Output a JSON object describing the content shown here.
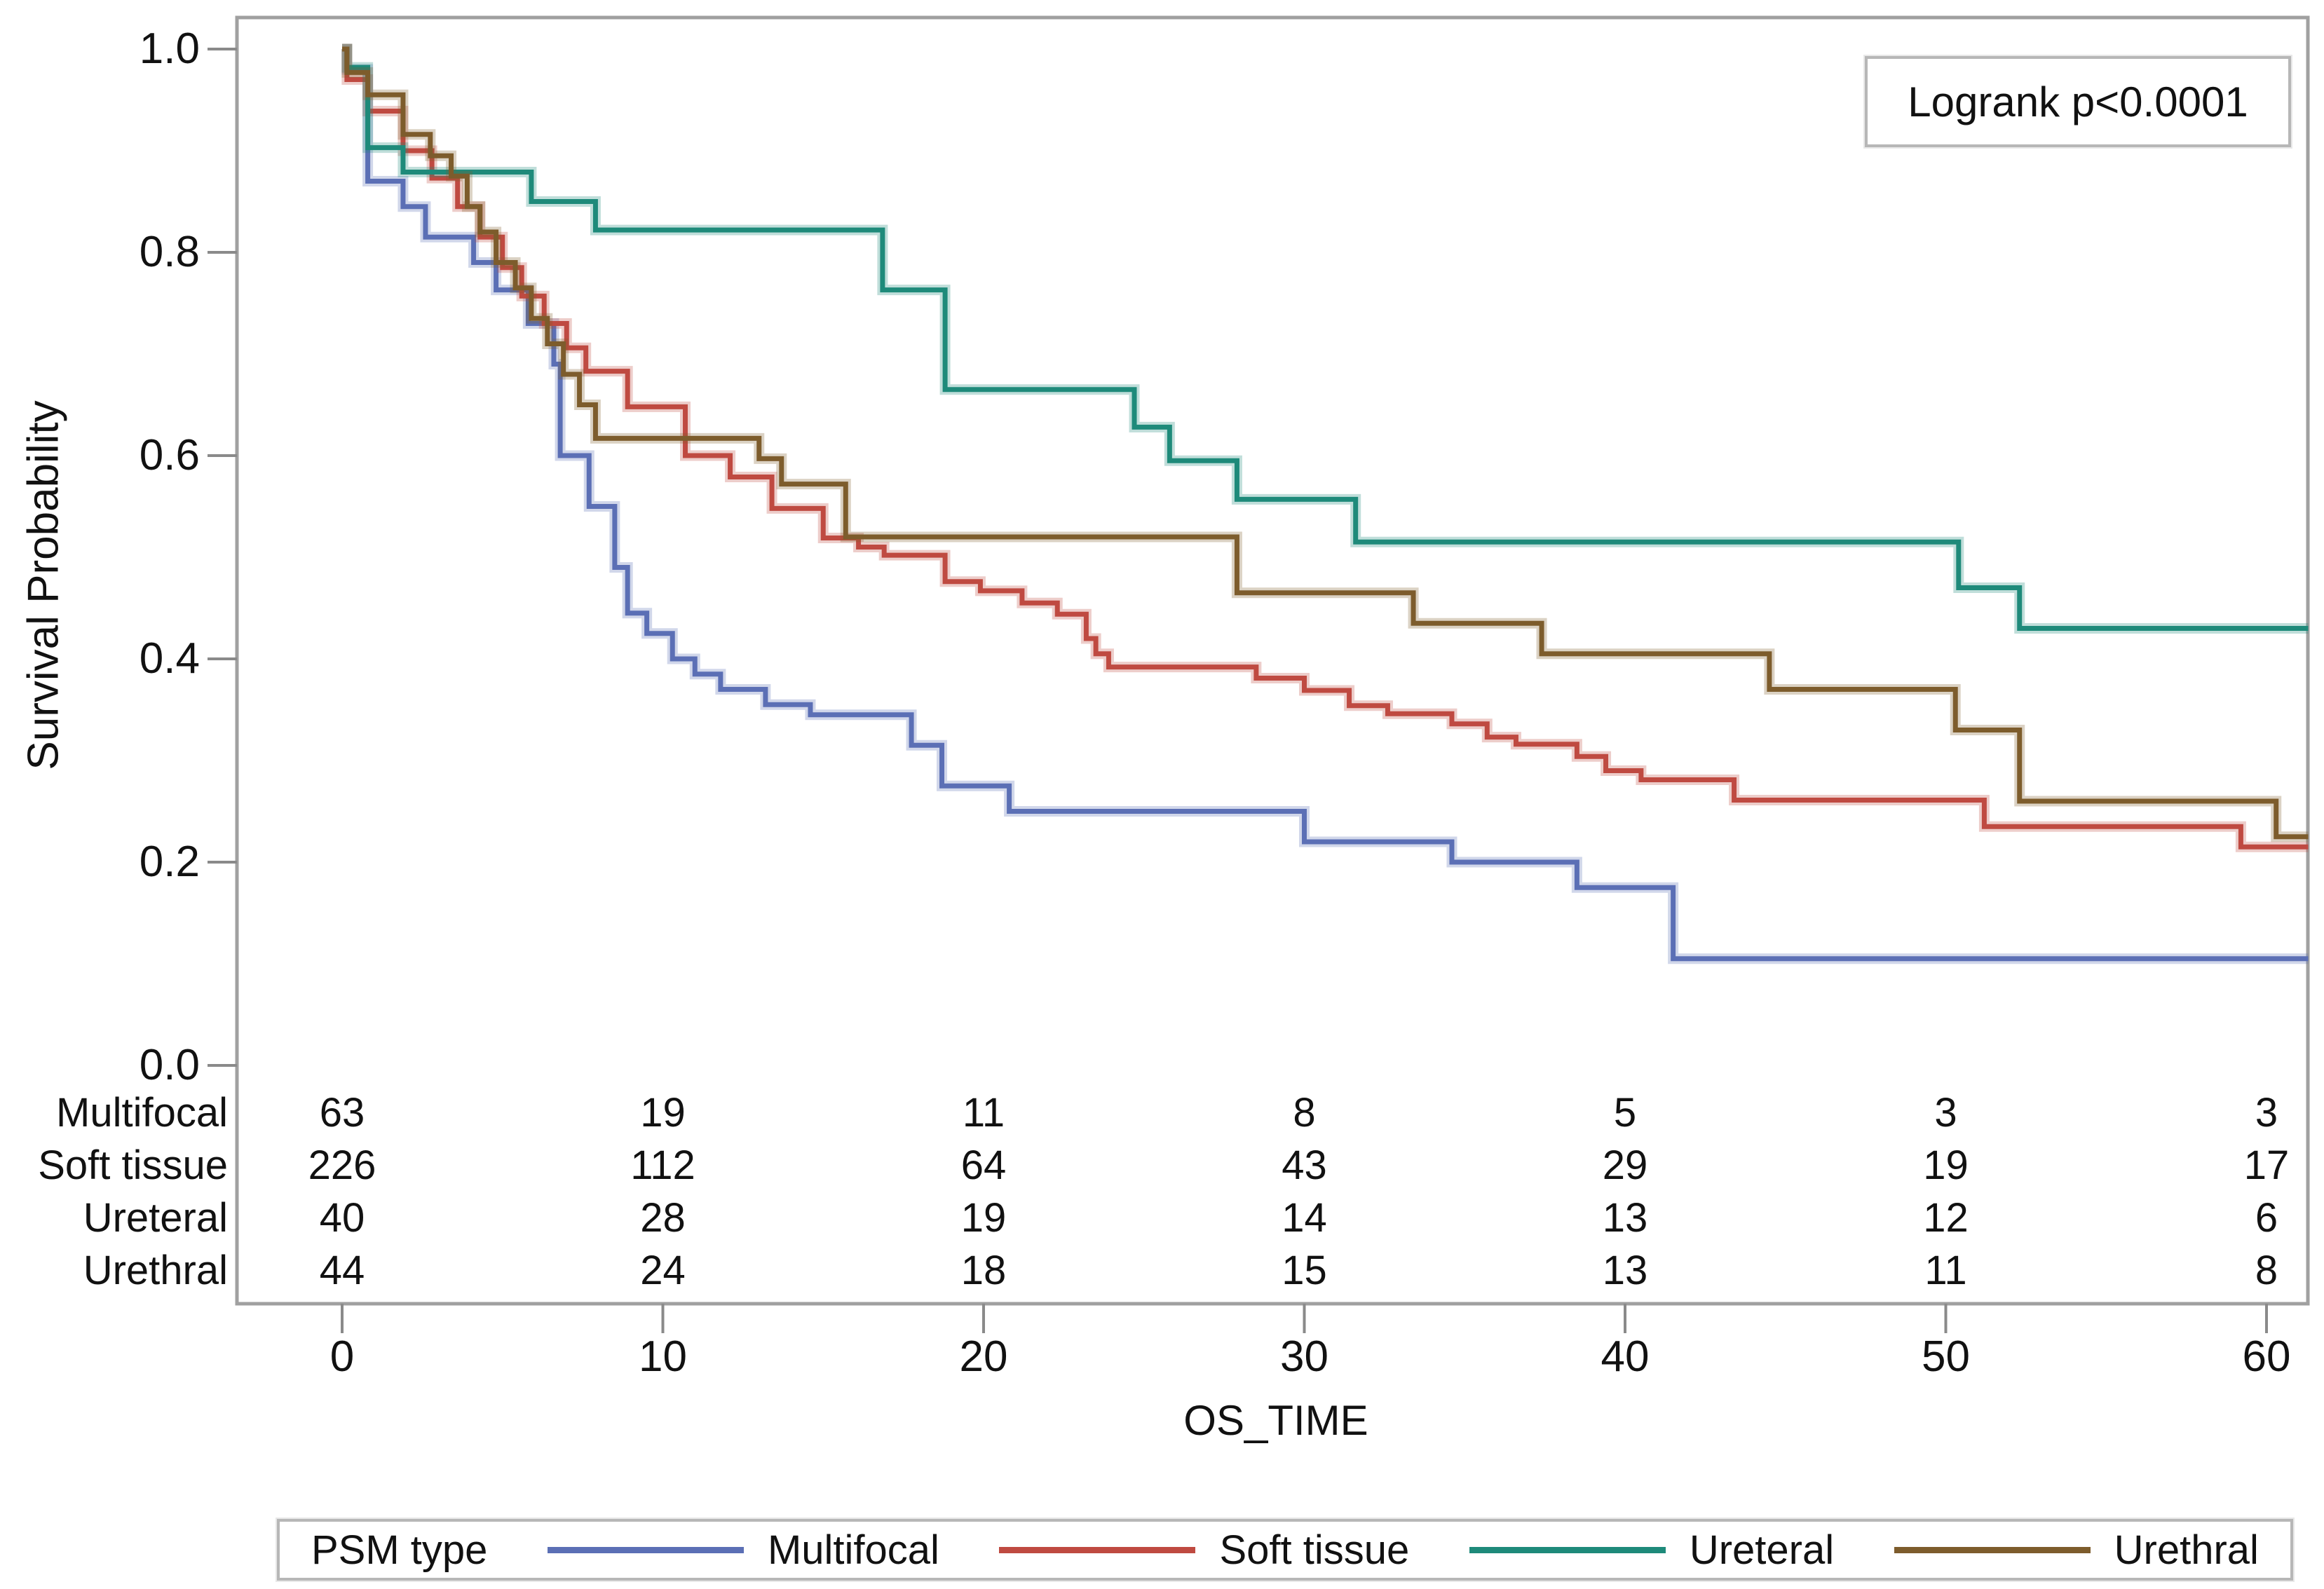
{
  "annotation": {
    "logrank_label": "Logrank p<0.0001"
  },
  "axes": {
    "x_label": "OS_TIME",
    "y_label": "Survival Probability"
  },
  "colors": {
    "frame": "#a0a0a0",
    "tick": "#8a8a8a",
    "text": "#111111",
    "box_border": "#b7b7b7"
  },
  "chart_data": {
    "type": "line",
    "subtype": "kaplan-meier-step",
    "title": "",
    "xlabel": "OS_TIME",
    "ylabel": "Survival Probability",
    "xlim": [
      0,
      61.3
    ],
    "ylim": [
      0.0,
      1.0
    ],
    "grid": false,
    "legend_position": "bottom",
    "annotation": "Logrank p<0.0001",
    "xticks": [
      0,
      10,
      20,
      30,
      40,
      50,
      60
    ],
    "xtick_labels": [
      "0",
      "10",
      "20",
      "30",
      "40",
      "50",
      "60"
    ],
    "yticks": [
      1.0,
      0.8,
      0.6,
      0.4,
      0.2,
      0.0
    ],
    "ytick_labels": [
      "1.0",
      "0.8",
      "0.6",
      "0.4",
      "0.2",
      "0.0"
    ],
    "series": [
      {
        "name": "Multifocal",
        "color": "#5b6fb5",
        "steps": [
          [
            0,
            1.0
          ],
          [
            0.15,
            0.98
          ],
          [
            0.8,
            0.87
          ],
          [
            1.9,
            0.845
          ],
          [
            2.6,
            0.815
          ],
          [
            4.1,
            0.79
          ],
          [
            4.8,
            0.763
          ],
          [
            5.8,
            0.73
          ],
          [
            6.6,
            0.69
          ],
          [
            6.8,
            0.6
          ],
          [
            7.7,
            0.55
          ],
          [
            8.5,
            0.49
          ],
          [
            8.9,
            0.445
          ],
          [
            9.5,
            0.425
          ],
          [
            10.3,
            0.4
          ],
          [
            11.0,
            0.385
          ],
          [
            11.8,
            0.37
          ],
          [
            13.2,
            0.355
          ],
          [
            14.6,
            0.345
          ],
          [
            17.75,
            0.315
          ],
          [
            18.7,
            0.275
          ],
          [
            20.8,
            0.25
          ],
          [
            30.0,
            0.22
          ],
          [
            34.6,
            0.2
          ],
          [
            38.5,
            0.175
          ],
          [
            41.5,
            0.105
          ]
        ]
      },
      {
        "name": "Soft tissue",
        "color": "#bf4a41",
        "steps": [
          [
            0,
            1.0
          ],
          [
            0.15,
            0.97
          ],
          [
            0.8,
            0.939
          ],
          [
            1.9,
            0.9
          ],
          [
            2.8,
            0.873
          ],
          [
            3.6,
            0.845
          ],
          [
            4.3,
            0.815
          ],
          [
            5.0,
            0.785
          ],
          [
            5.6,
            0.757
          ],
          [
            6.3,
            0.73
          ],
          [
            7.0,
            0.706
          ],
          [
            7.6,
            0.683
          ],
          [
            8.9,
            0.648
          ],
          [
            10.7,
            0.6
          ],
          [
            12.1,
            0.579
          ],
          [
            13.4,
            0.548
          ],
          [
            15.0,
            0.519
          ],
          [
            16.1,
            0.51
          ],
          [
            16.9,
            0.502
          ],
          [
            18.8,
            0.476
          ],
          [
            19.9,
            0.467
          ],
          [
            21.2,
            0.455
          ],
          [
            22.3,
            0.444
          ],
          [
            23.2,
            0.42
          ],
          [
            23.5,
            0.405
          ],
          [
            23.9,
            0.392
          ],
          [
            28.5,
            0.381
          ],
          [
            30.0,
            0.369
          ],
          [
            31.4,
            0.354
          ],
          [
            32.6,
            0.346
          ],
          [
            34.6,
            0.336
          ],
          [
            35.7,
            0.323
          ],
          [
            36.6,
            0.316
          ],
          [
            38.5,
            0.304
          ],
          [
            39.4,
            0.29
          ],
          [
            40.5,
            0.281
          ],
          [
            43.4,
            0.261
          ],
          [
            51.2,
            0.235
          ],
          [
            59.2,
            0.215
          ]
        ]
      },
      {
        "name": "Ureteral",
        "color": "#1e8a7a",
        "steps": [
          [
            0,
            1.0
          ],
          [
            0.15,
            0.982
          ],
          [
            0.8,
            0.903
          ],
          [
            1.9,
            0.879
          ],
          [
            5.9,
            0.85
          ],
          [
            7.9,
            0.822
          ],
          [
            16.85,
            0.763
          ],
          [
            18.8,
            0.665
          ],
          [
            24.7,
            0.628
          ],
          [
            25.8,
            0.595
          ],
          [
            27.9,
            0.557
          ],
          [
            31.6,
            0.515
          ],
          [
            50.4,
            0.47
          ],
          [
            52.3,
            0.43
          ]
        ]
      },
      {
        "name": "Urethral",
        "color": "#7d5c2c",
        "steps": [
          [
            0,
            1.0
          ],
          [
            0.15,
            0.977
          ],
          [
            0.8,
            0.955
          ],
          [
            1.9,
            0.916
          ],
          [
            2.75,
            0.895
          ],
          [
            3.4,
            0.875
          ],
          [
            3.9,
            0.845
          ],
          [
            4.3,
            0.82
          ],
          [
            4.8,
            0.79
          ],
          [
            5.4,
            0.765
          ],
          [
            5.9,
            0.735
          ],
          [
            6.4,
            0.71
          ],
          [
            6.9,
            0.68
          ],
          [
            7.4,
            0.65
          ],
          [
            7.9,
            0.617
          ],
          [
            13.0,
            0.597
          ],
          [
            13.7,
            0.572
          ],
          [
            15.7,
            0.52
          ],
          [
            27.9,
            0.465
          ],
          [
            33.4,
            0.435
          ],
          [
            37.4,
            0.405
          ],
          [
            44.5,
            0.37
          ],
          [
            50.3,
            0.33
          ],
          [
            52.3,
            0.26
          ],
          [
            60.3,
            0.225
          ]
        ]
      }
    ]
  },
  "risk_table": {
    "times": [
      0,
      10,
      20,
      30,
      40,
      50,
      60
    ],
    "rows": [
      {
        "label": "Multifocal",
        "values": [
          "63",
          "19",
          "11",
          "8",
          "5",
          "3",
          "3"
        ]
      },
      {
        "label": "Soft tissue",
        "values": [
          "226",
          "112",
          "64",
          "43",
          "29",
          "19",
          "17"
        ]
      },
      {
        "label": "Ureteral",
        "values": [
          "40",
          "28",
          "19",
          "14",
          "13",
          "12",
          "6"
        ]
      },
      {
        "label": "Urethral",
        "values": [
          "44",
          "24",
          "18",
          "15",
          "13",
          "11",
          "8"
        ]
      }
    ]
  },
  "legend": {
    "title": "PSM type",
    "items": [
      {
        "label": "Multifocal",
        "color": "#5b6fb5"
      },
      {
        "label": "Soft tissue",
        "color": "#bf4a41"
      },
      {
        "label": "Ureteral",
        "color": "#1e8a7a"
      },
      {
        "label": "Urethral",
        "color": "#7d5c2c"
      }
    ]
  }
}
